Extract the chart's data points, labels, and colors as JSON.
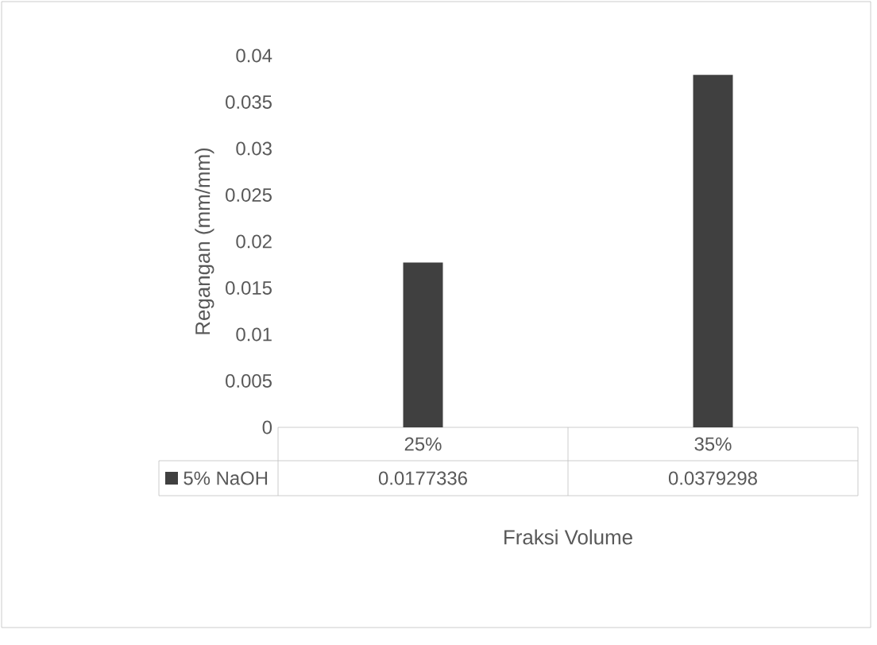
{
  "chart_data": {
    "type": "bar",
    "xlabel": "Fraksi Volume",
    "ylabel": "Regangan (mm/mm)",
    "categories": [
      "25%",
      "35%"
    ],
    "series": [
      {
        "name": "5% NaOH",
        "color": "#404040",
        "values": [
          0.0177336,
          0.0379298
        ]
      }
    ],
    "ylim": [
      0,
      0.04
    ],
    "yticks": [
      0,
      0.005,
      0.01,
      0.015,
      0.02,
      0.025,
      0.03,
      0.035,
      0.04
    ],
    "data_labels": true,
    "legend": "bottom"
  }
}
